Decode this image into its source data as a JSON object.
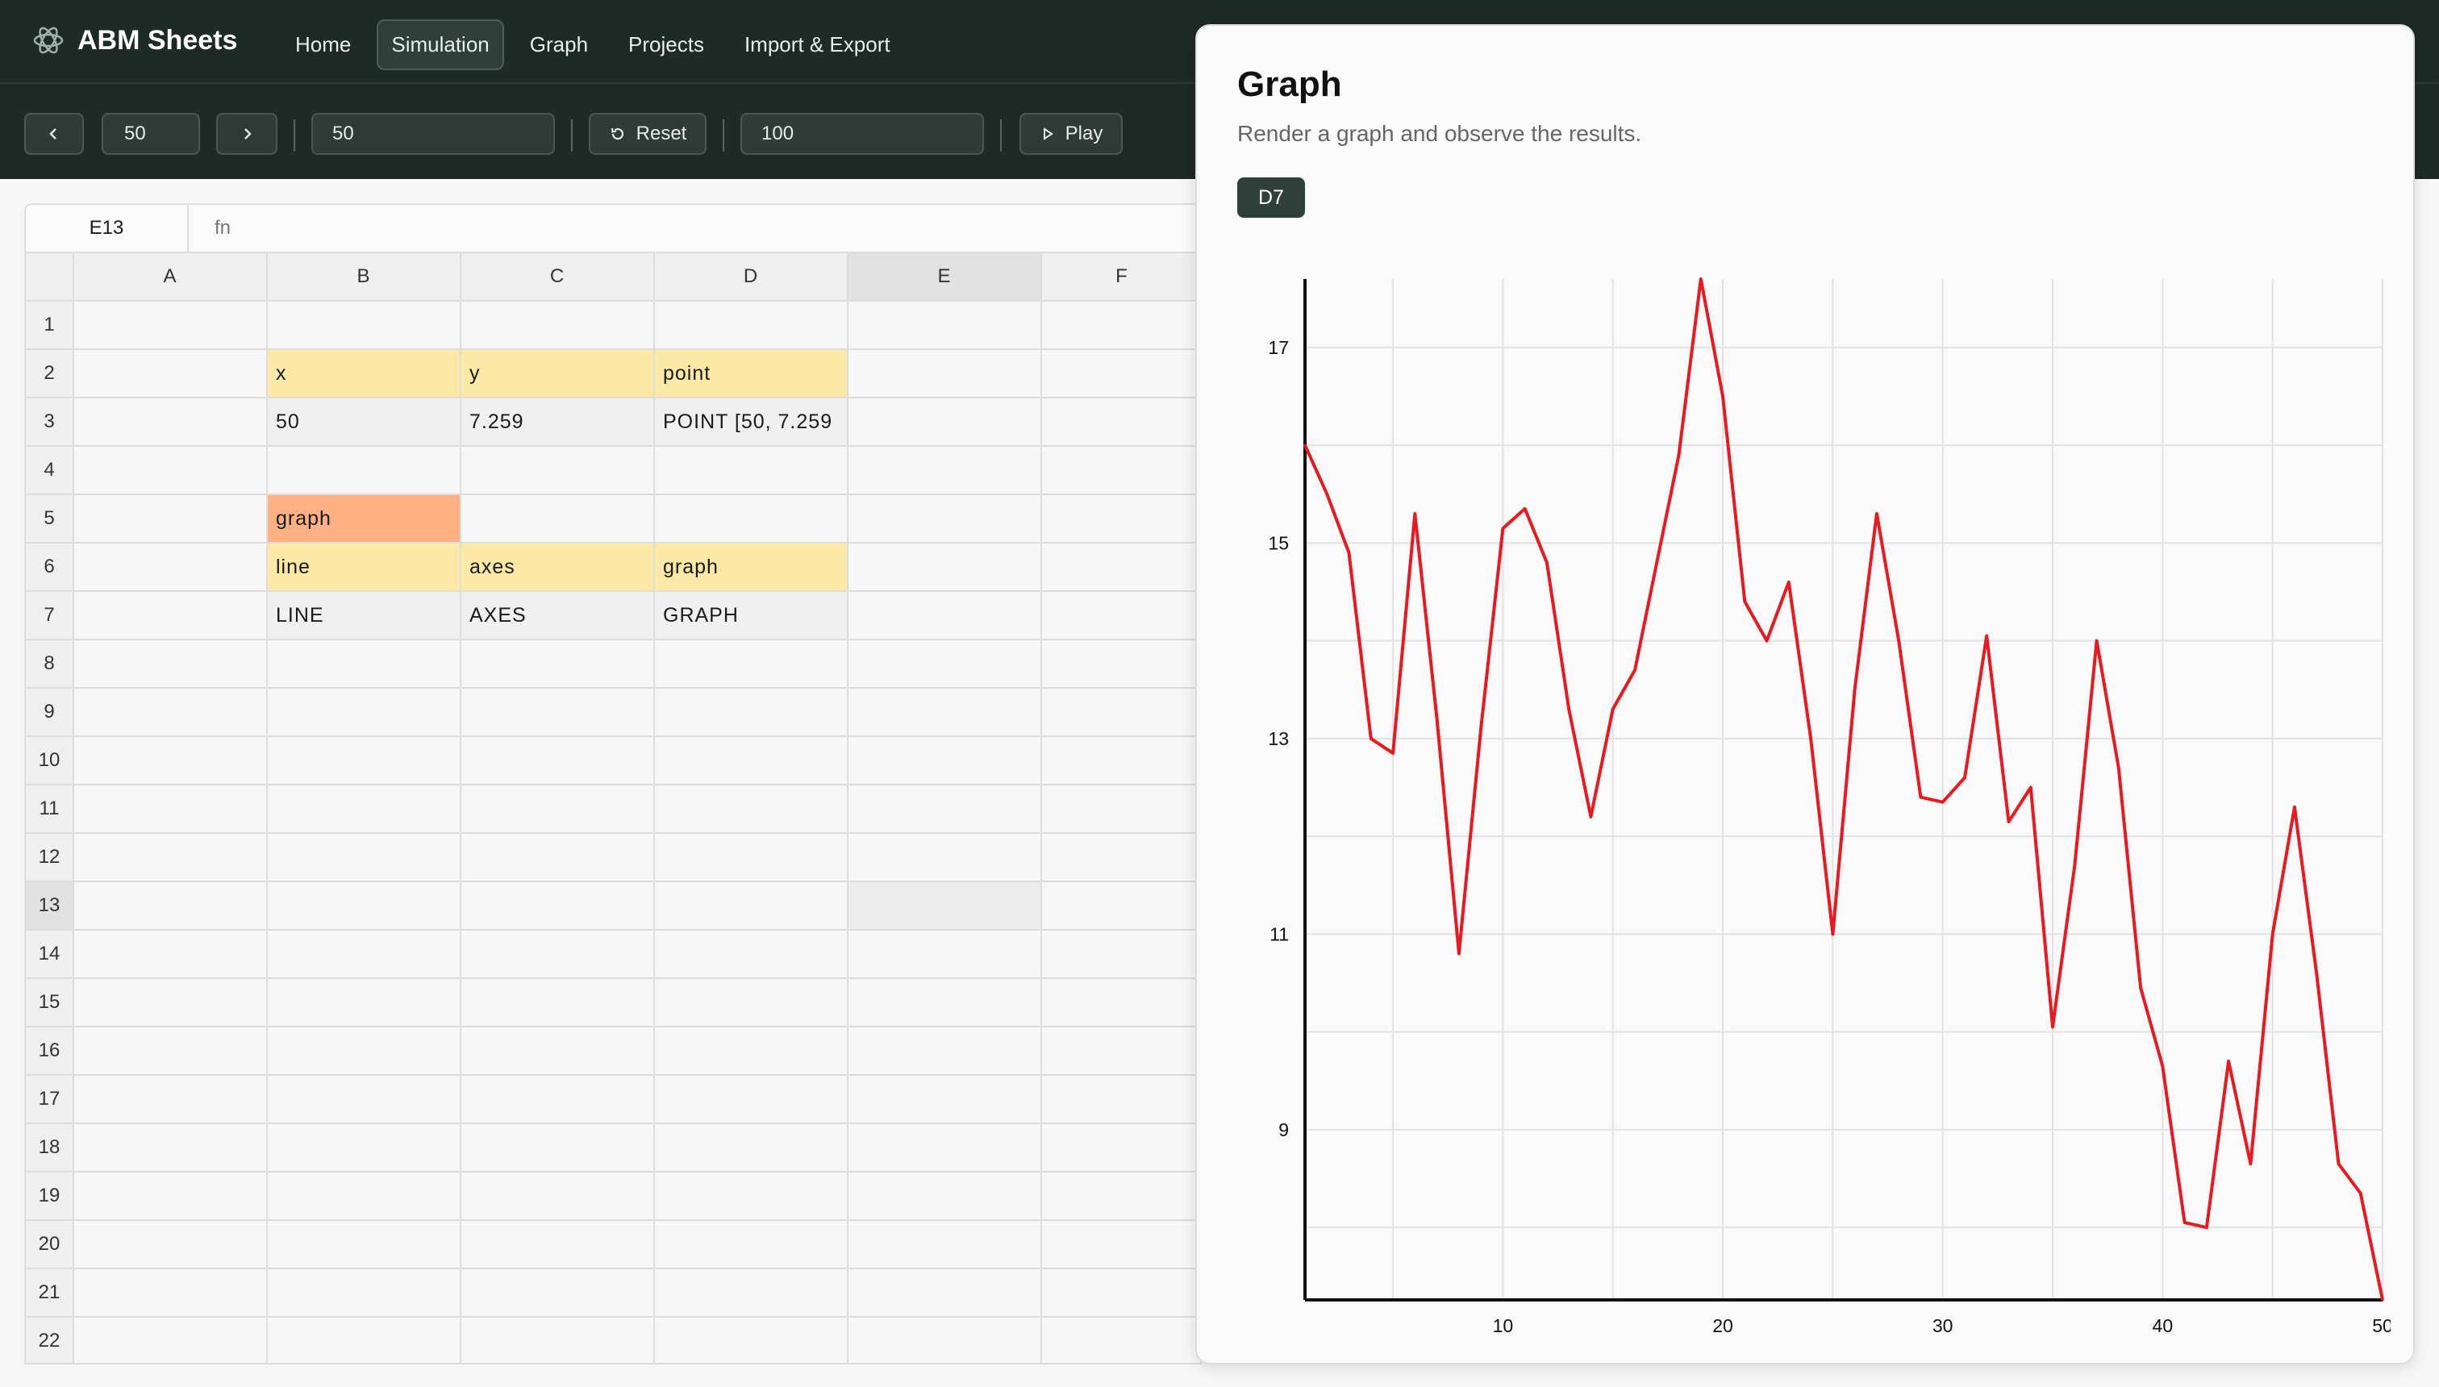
{
  "app": {
    "title": "ABM Sheets"
  },
  "nav": {
    "items": [
      "Home",
      "Simulation",
      "Graph",
      "Projects",
      "Import & Export"
    ],
    "active": "Simulation"
  },
  "toolbar": {
    "step_value": "50",
    "step_input": "50",
    "reset_label": "Reset",
    "max_input": "100",
    "play_label": "Play"
  },
  "formula_bar": {
    "cell_ref": "E13",
    "placeholder": "fn"
  },
  "sheet": {
    "columns": [
      "A",
      "B",
      "C",
      "D",
      "E",
      "F"
    ],
    "rows": [
      "1",
      "2",
      "3",
      "4",
      "5",
      "6",
      "7",
      "8",
      "9",
      "10",
      "11",
      "12",
      "13",
      "14",
      "15",
      "16",
      "17",
      "18",
      "19",
      "20",
      "21",
      "22"
    ],
    "cells": {
      "B2": "x",
      "C2": "y",
      "D2": "point",
      "B3": "50",
      "C3": "7.259",
      "D3": "POINT [50, 7.259",
      "B5": "graph",
      "B6": "line",
      "C6": "axes",
      "D6": "graph",
      "B7": "LINE",
      "C7": "AXES",
      "D7": "GRAPH"
    },
    "selected_cell": "E13"
  },
  "panel": {
    "title": "Graph",
    "subtitle": "Render a graph and observe the results.",
    "badge": "D7"
  },
  "chart_data": {
    "type": "line",
    "title": "",
    "xlabel": "",
    "ylabel": "",
    "xlim": [
      1,
      50
    ],
    "ylim": [
      7.259,
      17.7
    ],
    "x_ticks": [
      10,
      20,
      30,
      40,
      50
    ],
    "y_ticks": [
      9,
      11,
      13,
      15,
      17
    ],
    "grid": true,
    "series": [
      {
        "color": "#e8191f",
        "x": [
          1,
          2,
          3,
          4,
          5,
          6,
          7,
          8,
          9,
          10,
          11,
          12,
          13,
          14,
          15,
          16,
          17,
          18,
          19,
          20,
          21,
          22,
          23,
          24,
          25,
          26,
          27,
          28,
          29,
          30,
          31,
          32,
          33,
          34,
          35,
          36,
          37,
          38,
          39,
          40,
          41,
          42,
          43,
          44,
          45,
          46,
          47,
          48,
          49,
          50
        ],
        "values": [
          16.0,
          15.5,
          14.9,
          13.0,
          12.85,
          15.3,
          13.2,
          10.8,
          13.1,
          15.15,
          15.35,
          14.8,
          13.3,
          12.2,
          13.3,
          13.7,
          14.8,
          15.9,
          17.7,
          16.5,
          14.4,
          14.0,
          14.6,
          13.0,
          11.0,
          13.5,
          15.3,
          14.0,
          12.4,
          12.35,
          12.6,
          14.05,
          12.15,
          12.5,
          10.05,
          11.7,
          14.0,
          12.7,
          10.45,
          9.65,
          8.05,
          8.0,
          9.7,
          8.65,
          11.0,
          12.3,
          10.6,
          8.65,
          8.35,
          7.259
        ]
      }
    ]
  }
}
